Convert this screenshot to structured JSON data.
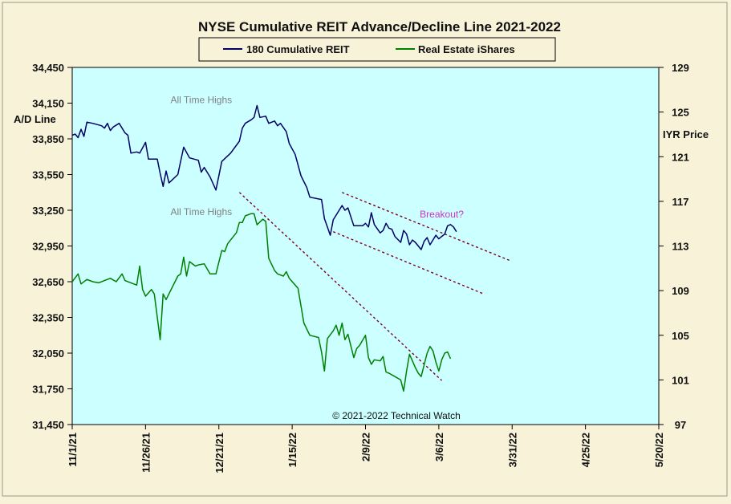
{
  "chart_data": {
    "type": "line",
    "title": "NYSE Cumulative  REIT Advance/Decline  Line 2021-2022",
    "ylabel_left": "A/D Line",
    "ylabel_right": "IYR Price",
    "copyright": "© 2021-2022  Technical  Watch",
    "left_axis": {
      "min": 31450,
      "max": 34450,
      "ticks": [
        "34,450",
        "34,150",
        "33,850",
        "33,550",
        "33,250",
        "32,950",
        "32,650",
        "32,350",
        "32,050",
        "31,750",
        "31,450"
      ]
    },
    "right_axis": {
      "min": 97,
      "max": 129,
      "ticks": [
        "129",
        "125",
        "121",
        "117",
        "113",
        "109",
        "105",
        "101",
        "97"
      ]
    },
    "x_axis": {
      "start": "2021-11-01",
      "end": "2022-05-20",
      "ticks": [
        "11/1/21",
        "11/26/21",
        "12/21/21",
        "1/15/22",
        "2/9/22",
        "3/6/22",
        "3/31/22",
        "4/25/22",
        "5/20/22"
      ]
    },
    "grid": false,
    "legend_position": "top-center",
    "colors": {
      "plot_bg": "#ccffff",
      "page_bg": "#f7f2d8",
      "ad_line": "#000066",
      "iyr_line": "#008000",
      "trend": "#800020",
      "annotation_gray": "#808080",
      "annotation_pink": "#cc33cc"
    },
    "series": [
      {
        "name": "180 Cumulative REIT",
        "axis": "left",
        "color": "#000066",
        "points": [
          [
            "2021-11-01",
            33880
          ],
          [
            "2021-11-02",
            33890
          ],
          [
            "2021-11-03",
            33860
          ],
          [
            "2021-11-04",
            33930
          ],
          [
            "2021-11-05",
            33870
          ],
          [
            "2021-11-06",
            33990
          ],
          [
            "2021-11-08",
            33980
          ],
          [
            "2021-11-11",
            33960
          ],
          [
            "2021-11-12",
            33940
          ],
          [
            "2021-11-13",
            33980
          ],
          [
            "2021-11-14",
            33920
          ],
          [
            "2021-11-15",
            33950
          ],
          [
            "2021-11-17",
            33980
          ],
          [
            "2021-11-19",
            33900
          ],
          [
            "2021-11-20",
            33880
          ],
          [
            "2021-11-21",
            33730
          ],
          [
            "2021-11-23",
            33740
          ],
          [
            "2021-11-24",
            33730
          ],
          [
            "2021-11-26",
            33820
          ],
          [
            "2021-11-27",
            33680
          ],
          [
            "2021-11-30",
            33680
          ],
          [
            "2021-12-01",
            33560
          ],
          [
            "2021-12-02",
            33450
          ],
          [
            "2021-12-03",
            33580
          ],
          [
            "2021-12-04",
            33480
          ],
          [
            "2021-12-07",
            33550
          ],
          [
            "2021-12-09",
            33780
          ],
          [
            "2021-12-11",
            33690
          ],
          [
            "2021-12-14",
            33670
          ],
          [
            "2021-12-15",
            33570
          ],
          [
            "2021-12-16",
            33610
          ],
          [
            "2021-12-18",
            33530
          ],
          [
            "2021-12-20",
            33420
          ],
          [
            "2021-12-22",
            33660
          ],
          [
            "2021-12-25",
            33730
          ],
          [
            "2021-12-28",
            33830
          ],
          [
            "2021-12-29",
            33940
          ],
          [
            "2021-12-30",
            33980
          ],
          [
            "2022-01-01",
            34010
          ],
          [
            "2022-01-02",
            34030
          ],
          [
            "2022-01-03",
            34130
          ],
          [
            "2022-01-04",
            34030
          ],
          [
            "2022-01-06",
            34040
          ],
          [
            "2022-01-07",
            33980
          ],
          [
            "2022-01-09",
            34000
          ],
          [
            "2022-01-10",
            33960
          ],
          [
            "2022-01-11",
            33980
          ],
          [
            "2022-01-13",
            33910
          ],
          [
            "2022-01-14",
            33810
          ],
          [
            "2022-01-16",
            33720
          ],
          [
            "2022-01-18",
            33540
          ],
          [
            "2022-01-20",
            33440
          ],
          [
            "2022-01-21",
            33360
          ],
          [
            "2022-01-25",
            33340
          ],
          [
            "2022-01-26",
            33180
          ],
          [
            "2022-01-27",
            33110
          ],
          [
            "2022-01-28",
            33040
          ],
          [
            "2022-01-29",
            33170
          ],
          [
            "2022-02-01",
            33290
          ],
          [
            "2022-02-02",
            33250
          ],
          [
            "2022-02-03",
            33270
          ],
          [
            "2022-02-05",
            33120
          ],
          [
            "2022-02-08",
            33120
          ],
          [
            "2022-02-09",
            33140
          ],
          [
            "2022-02-10",
            33110
          ],
          [
            "2022-02-11",
            33230
          ],
          [
            "2022-02-12",
            33130
          ],
          [
            "2022-02-14",
            33060
          ],
          [
            "2022-02-15",
            33080
          ],
          [
            "2022-02-16",
            33140
          ],
          [
            "2022-02-17",
            33100
          ],
          [
            "2022-02-18",
            33090
          ],
          [
            "2022-02-19",
            33030
          ],
          [
            "2022-02-21",
            32980
          ],
          [
            "2022-02-22",
            33080
          ],
          [
            "2022-02-23",
            33050
          ],
          [
            "2022-02-24",
            32960
          ],
          [
            "2022-02-25",
            33000
          ],
          [
            "2022-02-26",
            32980
          ],
          [
            "2022-02-28",
            32920
          ],
          [
            "2022-03-01",
            32990
          ],
          [
            "2022-03-02",
            33020
          ],
          [
            "2022-03-03",
            32960
          ],
          [
            "2022-03-05",
            33040
          ],
          [
            "2022-03-06",
            33010
          ],
          [
            "2022-03-07",
            33030
          ],
          [
            "2022-03-08",
            33050
          ],
          [
            "2022-03-09",
            33120
          ],
          [
            "2022-03-10",
            33130
          ],
          [
            "2022-03-11",
            33110
          ],
          [
            "2022-03-12",
            33070
          ]
        ]
      },
      {
        "name": "Real Estate iShares",
        "axis": "right",
        "color": "#008000",
        "points": [
          [
            "2021-11-01",
            109.8
          ],
          [
            "2021-11-03",
            110.5
          ],
          [
            "2021-11-04",
            109.6
          ],
          [
            "2021-11-06",
            110.0
          ],
          [
            "2021-11-08",
            109.8
          ],
          [
            "2021-11-10",
            109.7
          ],
          [
            "2021-11-12",
            109.9
          ],
          [
            "2021-11-14",
            110.1
          ],
          [
            "2021-11-16",
            109.8
          ],
          [
            "2021-11-18",
            110.5
          ],
          [
            "2021-11-19",
            109.9
          ],
          [
            "2021-11-21",
            109.7
          ],
          [
            "2021-11-23",
            109.5
          ],
          [
            "2021-11-24",
            111.2
          ],
          [
            "2021-11-25",
            109.1
          ],
          [
            "2021-11-26",
            108.5
          ],
          [
            "2021-11-28",
            109.1
          ],
          [
            "2021-11-29",
            108.7
          ],
          [
            "2021-12-01",
            104.6
          ],
          [
            "2021-12-02",
            108.7
          ],
          [
            "2021-12-03",
            108.2
          ],
          [
            "2021-12-07",
            110.3
          ],
          [
            "2021-12-08",
            110.5
          ],
          [
            "2021-12-09",
            112.0
          ],
          [
            "2021-12-10",
            110.3
          ],
          [
            "2021-12-11",
            111.6
          ],
          [
            "2021-12-13",
            111.2
          ],
          [
            "2021-12-14",
            111.3
          ],
          [
            "2021-12-16",
            111.4
          ],
          [
            "2021-12-18",
            110.5
          ],
          [
            "2021-12-20",
            110.5
          ],
          [
            "2021-12-22",
            112.6
          ],
          [
            "2021-12-23",
            112.5
          ],
          [
            "2021-12-24",
            113.2
          ],
          [
            "2021-12-27",
            114.2
          ],
          [
            "2021-12-28",
            115.1
          ],
          [
            "2021-12-29",
            115.1
          ],
          [
            "2021-12-30",
            115.7
          ],
          [
            "2022-01-01",
            115.9
          ],
          [
            "2022-01-02",
            115.9
          ],
          [
            "2022-01-03",
            114.9
          ],
          [
            "2022-01-05",
            115.4
          ],
          [
            "2022-01-06",
            115.2
          ],
          [
            "2022-01-07",
            111.9
          ],
          [
            "2022-01-09",
            110.8
          ],
          [
            "2022-01-10",
            110.5
          ],
          [
            "2022-01-12",
            110.3
          ],
          [
            "2022-01-13",
            110.7
          ],
          [
            "2022-01-14",
            110.1
          ],
          [
            "2022-01-17",
            109.2
          ],
          [
            "2022-01-19",
            106.1
          ],
          [
            "2022-01-21",
            105.0
          ],
          [
            "2022-01-24",
            104.8
          ],
          [
            "2022-01-25",
            103.5
          ],
          [
            "2022-01-26",
            101.8
          ],
          [
            "2022-01-27",
            104.7
          ],
          [
            "2022-01-29",
            105.4
          ],
          [
            "2022-01-30",
            105.9
          ],
          [
            "2022-01-31",
            105.0
          ],
          [
            "2022-02-01",
            106.1
          ],
          [
            "2022-02-02",
            104.6
          ],
          [
            "2022-02-03",
            105.1
          ],
          [
            "2022-02-05",
            103.0
          ],
          [
            "2022-02-06",
            103.8
          ],
          [
            "2022-02-07",
            104.1
          ],
          [
            "2022-02-09",
            105.0
          ],
          [
            "2022-02-10",
            103.0
          ],
          [
            "2022-02-11",
            102.4
          ],
          [
            "2022-02-12",
            102.8
          ],
          [
            "2022-02-14",
            102.7
          ],
          [
            "2022-02-15",
            103.1
          ],
          [
            "2022-02-16",
            101.7
          ],
          [
            "2022-02-17",
            101.6
          ],
          [
            "2022-02-19",
            101.3
          ],
          [
            "2022-02-21",
            101.0
          ],
          [
            "2022-02-22",
            100.0
          ],
          [
            "2022-02-23",
            101.8
          ],
          [
            "2022-02-24",
            103.3
          ],
          [
            "2022-02-25",
            102.7
          ],
          [
            "2022-02-26",
            102.1
          ],
          [
            "2022-02-27",
            101.6
          ],
          [
            "2022-02-28",
            101.3
          ],
          [
            "2022-03-02",
            103.4
          ],
          [
            "2022-03-03",
            104.0
          ],
          [
            "2022-03-04",
            103.6
          ],
          [
            "2022-03-05",
            102.6
          ],
          [
            "2022-03-06",
            101.8
          ],
          [
            "2022-03-07",
            102.8
          ],
          [
            "2022-03-08",
            103.4
          ],
          [
            "2022-03-09",
            103.5
          ],
          [
            "2022-03-10",
            102.9
          ]
        ]
      }
    ],
    "trendlines": [
      {
        "axis": "left",
        "from": [
          "2022-01-29",
          33070
        ],
        "to": [
          "2022-03-21",
          32550
        ]
      },
      {
        "axis": "left",
        "from": [
          "2022-02-01",
          33400
        ],
        "to": [
          "2022-03-30",
          32830
        ]
      },
      {
        "axis": "left",
        "from": [
          "2021-12-28",
          33400
        ],
        "to": [
          "2022-03-07",
          31820
        ]
      }
    ],
    "annotations": [
      {
        "text": "All Time Highs",
        "anchor": [
          "2021-12-15",
          34150
        ],
        "axis": "left",
        "color": "gray"
      },
      {
        "text": "All Time Highs",
        "anchor": [
          "2021-12-15",
          33210
        ],
        "axis": "left",
        "color": "gray"
      },
      {
        "text": "Breakout?",
        "anchor": [
          "2022-03-07",
          33190
        ],
        "axis": "left",
        "color": "pink"
      }
    ]
  }
}
